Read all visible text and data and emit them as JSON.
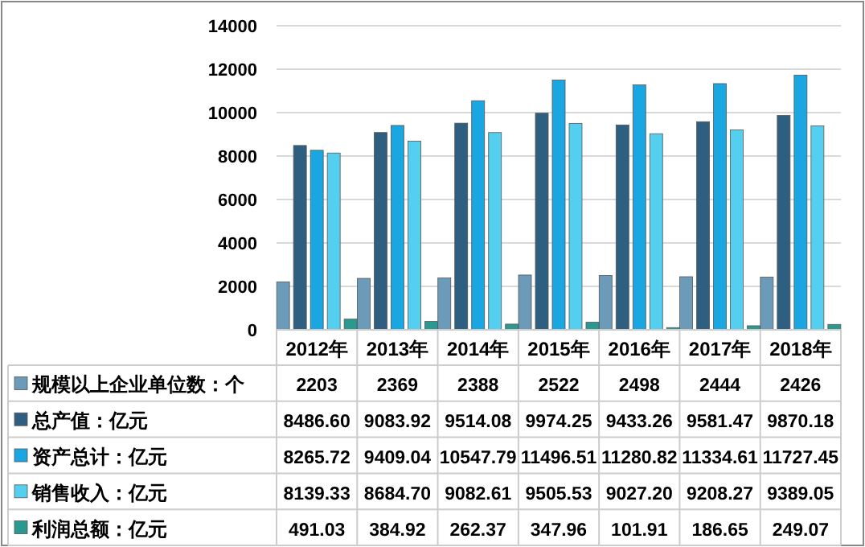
{
  "chart_data": {
    "type": "bar",
    "categories": [
      "2012年",
      "2013年",
      "2014年",
      "2015年",
      "2016年",
      "2017年",
      "2018年"
    ],
    "series": [
      {
        "name": "规模以上企业单位数：个",
        "color": "#6b9bb8",
        "values": [
          2203,
          2369,
          2388,
          2522,
          2498,
          2444,
          2426
        ],
        "value_labels": [
          "2203",
          "2369",
          "2388",
          "2522",
          "2498",
          "2444",
          "2426"
        ]
      },
      {
        "name": "总产值：亿元",
        "color": "#2f5f80",
        "values": [
          8486.6,
          9083.92,
          9514.08,
          9974.25,
          9433.26,
          9581.47,
          9870.18
        ],
        "value_labels": [
          "8486.60",
          "9083.92",
          "9514.08",
          "9974.25",
          "9433.26",
          "9581.47",
          "9870.18"
        ]
      },
      {
        "name": "资产总计：亿元",
        "color": "#1aa6e0",
        "values": [
          8265.72,
          9409.04,
          10547.79,
          11496.51,
          11280.82,
          11334.61,
          11727.45
        ],
        "value_labels": [
          "8265.72",
          "9409.04",
          "10547.79",
          "11496.51",
          "11280.82",
          "11334.61",
          "11727.45"
        ]
      },
      {
        "name": "销售收入：亿元",
        "color": "#55cff0",
        "values": [
          8139.33,
          8684.7,
          9082.61,
          9505.53,
          9027.2,
          9208.27,
          9389.05
        ],
        "value_labels": [
          "8139.33",
          "8684.70",
          "9082.61",
          "9505.53",
          "9027.20",
          "9208.27",
          "9389.05"
        ]
      },
      {
        "name": "利润总额：亿元",
        "color": "#2a9990",
        "values": [
          491.03,
          384.92,
          262.37,
          347.96,
          101.91,
          186.65,
          249.07
        ],
        "value_labels": [
          "491.03",
          "384.92",
          "262.37",
          "347.96",
          "101.91",
          "186.65",
          "249.07"
        ]
      }
    ],
    "ylim": [
      0,
      14000
    ],
    "yticks": [
      0,
      2000,
      4000,
      6000,
      8000,
      10000,
      12000,
      14000
    ],
    "grid": "y",
    "legend": "bottom"
  }
}
